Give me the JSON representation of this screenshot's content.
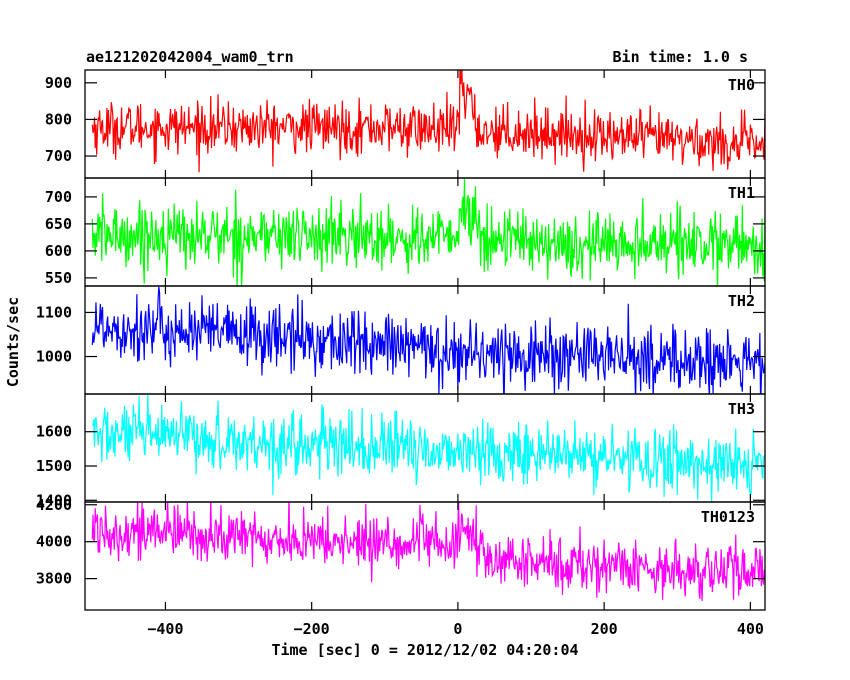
{
  "chart_data": {
    "type": "line",
    "title_left": "ae121202042004_wam0_trn",
    "title_right": "Bin time: 1.0 s",
    "xlabel": "Time [sec] 0 = 2012/12/02 04:20:04",
    "ylabel": "Counts/sec",
    "x_range": [
      -510,
      420
    ],
    "x_ticks": [
      -400,
      -200,
      0,
      200,
      400
    ],
    "x_tick_labels": [
      "−400",
      "−200",
      "0",
      "200",
      "400"
    ],
    "grid": false,
    "panels": [
      {
        "name": "TH0",
        "color": "#ff0000",
        "ylim": [
          640,
          935
        ],
        "y_ticks": [
          700,
          800,
          900
        ],
        "y_tick_labels": [
          "700",
          "800",
          "900"
        ],
        "level_points": [
          [
            -500,
            778
          ],
          [
            -300,
            778
          ],
          [
            -100,
            778
          ],
          [
            -5,
            770
          ],
          [
            5,
            790
          ],
          [
            15,
            820
          ],
          [
            30,
            770
          ],
          [
            100,
            765
          ],
          [
            200,
            755
          ],
          [
            300,
            745
          ],
          [
            420,
            728
          ]
        ],
        "noise": 35,
        "events": [
          {
            "t": 3,
            "dur": 20,
            "amp": 110
          }
        ]
      },
      {
        "name": "TH1",
        "color": "#00ff00",
        "ylim": [
          535,
          735
        ],
        "y_ticks": [
          550,
          600,
          650,
          700
        ],
        "y_tick_labels": [
          "550",
          "600",
          "650",
          "700"
        ],
        "level_points": [
          [
            -500,
            630
          ],
          [
            -200,
            628
          ],
          [
            -10,
            622
          ],
          [
            0,
            640
          ],
          [
            20,
            655
          ],
          [
            40,
            625
          ],
          [
            200,
            615
          ],
          [
            420,
            608
          ]
        ],
        "noise": 30,
        "events": [
          {
            "t": 2,
            "dur": 15,
            "amp": 50
          }
        ]
      },
      {
        "name": "TH2",
        "color": "#0000ff",
        "ylim": [
          915,
          1160
        ],
        "y_ticks": [
          1000,
          1100
        ],
        "y_tick_labels": [
          "1000",
          "1100"
        ],
        "level_points": [
          [
            -500,
            1070
          ],
          [
            -400,
            1060
          ],
          [
            -250,
            1045
          ],
          [
            0,
            1010
          ],
          [
            200,
            1000
          ],
          [
            420,
            980
          ]
        ],
        "noise": 38,
        "events": []
      },
      {
        "name": "TH3",
        "color": "#00ffff",
        "ylim": [
          1395,
          1710
        ],
        "y_ticks": [
          1400,
          1500,
          1600
        ],
        "y_tick_labels": [
          "1400",
          "1500",
          "1600"
        ],
        "level_points": [
          [
            -500,
            1595
          ],
          [
            -400,
            1585
          ],
          [
            -250,
            1565
          ],
          [
            0,
            1545
          ],
          [
            200,
            1525
          ],
          [
            420,
            1500
          ]
        ],
        "noise": 45,
        "events": []
      },
      {
        "name": "TH0123",
        "color": "#ff00ff",
        "ylim": [
          3630,
          4215
        ],
        "y_ticks": [
          3800,
          4000,
          4200
        ],
        "y_tick_labels": [
          "3800",
          "4000",
          "4200"
        ],
        "level_points": [
          [
            -500,
            4070
          ],
          [
            -400,
            4050
          ],
          [
            -200,
            4000
          ],
          [
            -10,
            3990
          ],
          [
            5,
            4020
          ],
          [
            20,
            4000
          ],
          [
            40,
            3900
          ],
          [
            200,
            3870
          ],
          [
            420,
            3830
          ]
        ],
        "noise": 75,
        "events": [
          {
            "t": 3,
            "dur": 18,
            "amp": 90
          }
        ]
      }
    ]
  }
}
